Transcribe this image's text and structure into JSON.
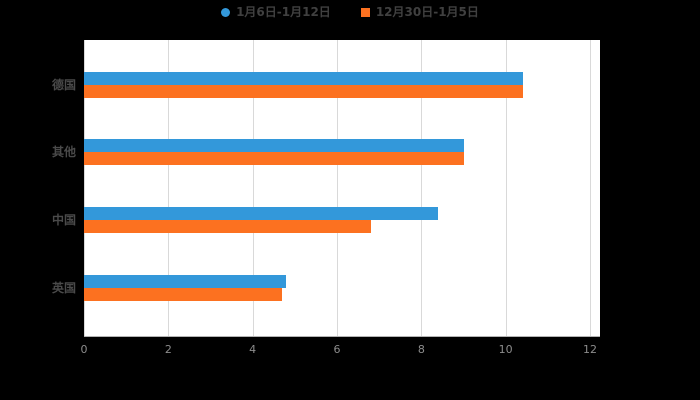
{
  "legend": {
    "items": [
      {
        "label": "1月6日-1月12日",
        "color": "#3398DA",
        "shape": "circle"
      },
      {
        "label": "12月30日-1月5日",
        "color": "#FC7120",
        "shape": "square"
      }
    ]
  },
  "chart_data": {
    "type": "bar",
    "orientation": "horizontal",
    "title": "",
    "xlabel": "",
    "ylabel": "",
    "categories": [
      "德国",
      "其他",
      "中国",
      "英国"
    ],
    "series": [
      {
        "name": "1月6日-1月12日",
        "color": "#3398DA",
        "values": [
          10.4,
          9.0,
          8.4,
          4.8
        ]
      },
      {
        "name": "12月30日-1月5日",
        "color": "#FC7120",
        "values": [
          10.4,
          9.0,
          6.8,
          4.7
        ]
      }
    ],
    "xlim": [
      0,
      12
    ],
    "xticks": [
      0,
      2,
      4,
      6,
      8,
      10,
      12
    ],
    "grid": true,
    "legend_position": "top",
    "plot_background": "#ffffff",
    "page_background": "#000000",
    "gridline_color": "#d9d9d9"
  }
}
